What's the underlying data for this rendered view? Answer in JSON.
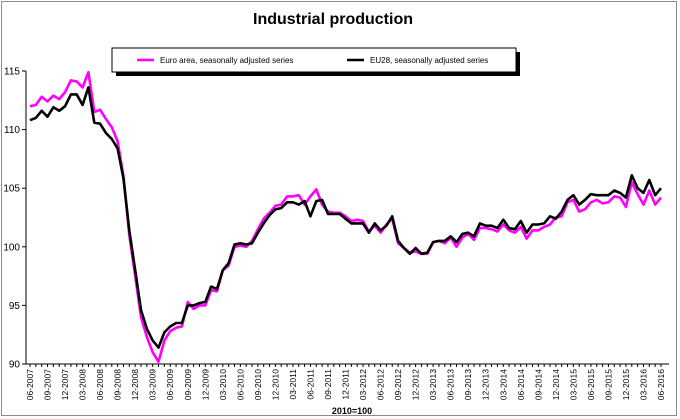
{
  "chart_data": {
    "type": "line",
    "title": "Industrial production",
    "xlabel": "2010=100",
    "ylabel": "",
    "ylim": [
      90,
      115
    ],
    "yticks": [
      90,
      95,
      100,
      105,
      110,
      115
    ],
    "grid": false,
    "legend_position": "top",
    "x_tick_labels": [
      "06-2007",
      "09-2007",
      "12-2007",
      "03-2008",
      "06-2008",
      "09-2008",
      "12-2008",
      "03-2009",
      "06-2009",
      "09-2009",
      "12-2009",
      "03-2010",
      "06-2010",
      "09-2010",
      "12-2010",
      "03-2011",
      "06-2011",
      "09-2011",
      "12-2011",
      "03-2012",
      "06-2012",
      "09-2012",
      "12-2012",
      "03-2013",
      "06-2013",
      "09-2013",
      "12-2013",
      "03-2014",
      "06-2014",
      "09-2014",
      "12-2014",
      "03-2015",
      "06-2015",
      "09-2015",
      "12-2015",
      "03-2016",
      "06-2016"
    ],
    "x": [
      "06-2007",
      "07-2007",
      "08-2007",
      "09-2007",
      "10-2007",
      "11-2007",
      "12-2007",
      "01-2008",
      "02-2008",
      "03-2008",
      "04-2008",
      "05-2008",
      "06-2008",
      "07-2008",
      "08-2008",
      "09-2008",
      "10-2008",
      "11-2008",
      "12-2008",
      "01-2009",
      "02-2009",
      "03-2009",
      "04-2009",
      "05-2009",
      "06-2009",
      "07-2009",
      "08-2009",
      "09-2009",
      "10-2009",
      "11-2009",
      "12-2009",
      "01-2010",
      "02-2010",
      "03-2010",
      "04-2010",
      "05-2010",
      "06-2010",
      "07-2010",
      "08-2010",
      "09-2010",
      "10-2010",
      "11-2010",
      "12-2010",
      "01-2011",
      "02-2011",
      "03-2011",
      "04-2011",
      "05-2011",
      "06-2011",
      "07-2011",
      "08-2011",
      "09-2011",
      "10-2011",
      "11-2011",
      "12-2011",
      "01-2012",
      "02-2012",
      "03-2012",
      "04-2012",
      "05-2012",
      "06-2012",
      "07-2012",
      "08-2012",
      "09-2012",
      "10-2012",
      "11-2012",
      "12-2012",
      "01-2013",
      "02-2013",
      "03-2013",
      "04-2013",
      "05-2013",
      "06-2013",
      "07-2013",
      "08-2013",
      "09-2013",
      "10-2013",
      "11-2013",
      "12-2013",
      "01-2014",
      "02-2014",
      "03-2014",
      "04-2014",
      "05-2014",
      "06-2014",
      "07-2014",
      "08-2014",
      "09-2014",
      "10-2014",
      "11-2014",
      "12-2014",
      "01-2015",
      "02-2015",
      "03-2015",
      "04-2015",
      "05-2015",
      "06-2015",
      "07-2015",
      "08-2015",
      "09-2015",
      "10-2015",
      "11-2015",
      "12-2015",
      "01-2016",
      "02-2016",
      "03-2016",
      "04-2016",
      "05-2016",
      "06-2016"
    ],
    "series": [
      {
        "name": "Euro area, seasonally adjusted series",
        "color": "#ff00ff",
        "values": [
          112.0,
          112.1,
          112.8,
          112.4,
          112.9,
          112.6,
          113.2,
          114.2,
          114.1,
          113.6,
          114.9,
          111.5,
          111.7,
          110.9,
          110.2,
          109.0,
          106.0,
          101.0,
          97.5,
          94.0,
          92.3,
          91.0,
          90.2,
          92.0,
          92.8,
          93.1,
          93.2,
          95.3,
          94.7,
          95.0,
          95.0,
          96.3,
          96.2,
          98.0,
          98.4,
          100.0,
          100.1,
          100.0,
          100.5,
          101.5,
          102.4,
          102.9,
          103.5,
          103.6,
          104.3,
          104.3,
          104.4,
          103.6,
          104.3,
          104.9,
          103.6,
          103.0,
          102.9,
          102.9,
          102.6,
          102.2,
          102.3,
          102.2,
          101.3,
          101.8,
          101.2,
          101.9,
          102.4,
          100.3,
          99.9,
          99.5,
          99.6,
          99.4,
          99.4,
          100.4,
          100.5,
          100.3,
          100.8,
          100.0,
          100.8,
          101.1,
          100.6,
          101.6,
          101.6,
          101.5,
          101.3,
          101.9,
          101.4,
          101.2,
          101.7,
          100.7,
          101.4,
          101.4,
          101.7,
          101.9,
          102.5,
          102.6,
          103.8,
          104.0,
          103.0,
          103.2,
          103.8,
          104.0,
          103.7,
          103.8,
          104.3,
          104.2,
          103.4,
          105.5,
          104.5,
          103.6,
          104.8,
          103.6,
          104.2
        ]
      },
      {
        "name": "EU28, seasonally adjusted series",
        "color": "#000000",
        "values": [
          110.8,
          111.0,
          111.6,
          111.1,
          111.9,
          111.6,
          112.0,
          113.0,
          113.0,
          112.1,
          113.6,
          110.6,
          110.5,
          109.7,
          109.2,
          108.4,
          105.8,
          101.4,
          98.0,
          94.6,
          93.0,
          92.0,
          91.4,
          92.7,
          93.2,
          93.5,
          93.5,
          95.0,
          95.0,
          95.2,
          95.3,
          96.6,
          96.4,
          98.0,
          98.6,
          100.2,
          100.3,
          100.2,
          100.3,
          101.2,
          102.0,
          102.7,
          103.2,
          103.3,
          103.8,
          103.8,
          103.6,
          103.9,
          102.6,
          103.9,
          104.0,
          102.8,
          102.8,
          102.8,
          102.4,
          102.0,
          102.0,
          102.0,
          101.2,
          102.0,
          101.4,
          101.8,
          102.6,
          100.5,
          99.9,
          99.4,
          99.9,
          99.4,
          99.5,
          100.4,
          100.5,
          100.5,
          100.9,
          100.4,
          101.1,
          101.2,
          100.9,
          102.0,
          101.8,
          101.8,
          101.6,
          102.3,
          101.6,
          101.5,
          102.2,
          101.2,
          101.9,
          101.9,
          102.0,
          102.6,
          102.4,
          103.0,
          104.0,
          104.4,
          103.6,
          104.0,
          104.5,
          104.4,
          104.4,
          104.4,
          104.8,
          104.6,
          104.2,
          106.1,
          105.0,
          104.6,
          105.7,
          104.4,
          105.0
        ]
      }
    ]
  }
}
